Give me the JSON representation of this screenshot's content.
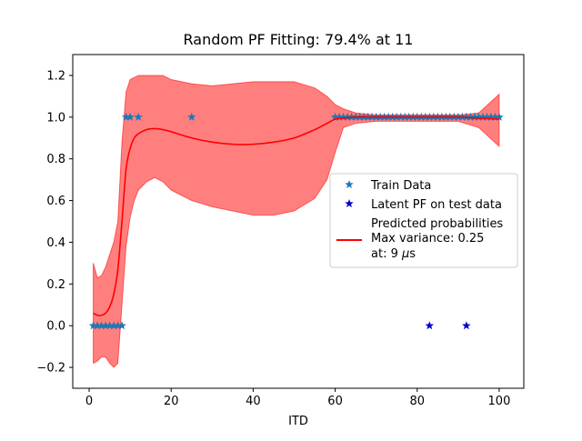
{
  "chart_data": {
    "type": "scatter",
    "title": "Random PF Fitting: 79.4% at 11",
    "xlabel": "ITD",
    "ylabel": "",
    "xlim": [
      -4,
      106
    ],
    "ylim": [
      -0.3,
      1.3
    ],
    "xticks": [
      0,
      20,
      40,
      60,
      80,
      100
    ],
    "yticks": [
      -0.2,
      0.0,
      0.2,
      0.4,
      0.6,
      0.8,
      1.0,
      1.2
    ],
    "xtick_labels": [
      "0",
      "20",
      "40",
      "60",
      "80",
      "100"
    ],
    "ytick_labels": [
      "−0.2",
      "0.0",
      "0.2",
      "0.4",
      "0.6",
      "0.8",
      "1.0",
      "1.2"
    ],
    "grid": false,
    "legend_position": "center-right",
    "legend": {
      "train": "Train Data",
      "latent": "Latent PF on test data",
      "pred_line1": "Predicted probabilities",
      "pred_line2": "Max variance: 0.25",
      "pred_line3_prefix": "at: 9 ",
      "pred_line3_unit": "μ",
      "pred_line3_suffix": "s"
    },
    "colors": {
      "train": "#1f77b4",
      "latent": "#0000cc",
      "predicted": "#ff0000",
      "band": "#ff0000"
    },
    "series": [
      {
        "name": "Train Data",
        "kind": "scatter",
        "marker": "star",
        "x": [
          1,
          2,
          3,
          4,
          5,
          6,
          7,
          8,
          9,
          10,
          12,
          25,
          60,
          61,
          62,
          63,
          64,
          65,
          66,
          67,
          68,
          69,
          70,
          71,
          72,
          73,
          74,
          75,
          76,
          77,
          78,
          79,
          80,
          81,
          82,
          83,
          84,
          85,
          86,
          87,
          88,
          89,
          90,
          91,
          92,
          93,
          94,
          95,
          96,
          97,
          98,
          99,
          100
        ],
        "y": [
          0,
          0,
          0,
          0,
          0,
          0,
          0,
          0,
          1,
          1,
          1,
          1,
          1,
          1,
          1,
          1,
          1,
          1,
          1,
          1,
          1,
          1,
          1,
          1,
          1,
          1,
          1,
          1,
          1,
          1,
          1,
          1,
          1,
          1,
          1,
          1,
          1,
          1,
          1,
          1,
          1,
          1,
          1,
          1,
          1,
          1,
          1,
          1,
          1,
          1,
          1,
          1,
          1
        ]
      },
      {
        "name": "Latent PF on test data",
        "kind": "scatter",
        "marker": "star",
        "x": [
          83,
          92
        ],
        "y": [
          0,
          0
        ]
      },
      {
        "name": "Predicted probabilities",
        "kind": "line",
        "x": [
          1,
          2,
          3,
          4,
          5,
          6,
          7,
          8,
          9,
          10,
          11,
          12,
          14,
          16,
          18,
          20,
          25,
          30,
          35,
          40,
          45,
          50,
          55,
          58,
          60,
          62,
          65,
          70,
          80,
          90,
          95,
          100
        ],
        "y": [
          0.06,
          0.05,
          0.05,
          0.06,
          0.09,
          0.15,
          0.27,
          0.5,
          0.75,
          0.85,
          0.9,
          0.92,
          0.94,
          0.945,
          0.94,
          0.93,
          0.9,
          0.88,
          0.87,
          0.87,
          0.88,
          0.9,
          0.94,
          0.97,
          0.99,
          0.995,
          1.0,
          1.0,
          1.0,
          1.0,
          0.995,
          0.99
        ]
      }
    ],
    "band": {
      "x": [
        1,
        2,
        3,
        4,
        5,
        6,
        7,
        8,
        9,
        10,
        11,
        12,
        14,
        16,
        18,
        20,
        25,
        30,
        35,
        40,
        45,
        50,
        55,
        58,
        60,
        62,
        65,
        70,
        80,
        90,
        95,
        100
      ],
      "upper": [
        0.3,
        0.23,
        0.24,
        0.28,
        0.34,
        0.4,
        0.5,
        0.88,
        1.12,
        1.18,
        1.19,
        1.2,
        1.2,
        1.2,
        1.2,
        1.18,
        1.16,
        1.15,
        1.16,
        1.17,
        1.17,
        1.17,
        1.14,
        1.1,
        1.06,
        1.04,
        1.02,
        1.01,
        1.01,
        1.01,
        1.02,
        1.11
      ],
      "lower": [
        -0.18,
        -0.17,
        -0.15,
        -0.15,
        -0.18,
        -0.2,
        -0.18,
        0.1,
        0.38,
        0.52,
        0.6,
        0.65,
        0.69,
        0.71,
        0.69,
        0.65,
        0.6,
        0.57,
        0.55,
        0.53,
        0.53,
        0.55,
        0.61,
        0.7,
        0.83,
        0.95,
        0.97,
        0.98,
        0.98,
        0.98,
        0.95,
        0.86
      ]
    }
  }
}
